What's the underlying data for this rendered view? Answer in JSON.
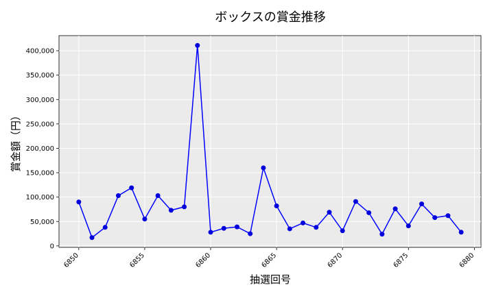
{
  "chart_data": {
    "type": "line",
    "title": "ボックスの賞金推移",
    "xlabel": "抽選回号",
    "ylabel": "賞金額（円）",
    "x_ticks": [
      6850,
      6855,
      6860,
      6865,
      6870,
      6875,
      6880
    ],
    "y_ticks": [
      0,
      50000,
      100000,
      150000,
      200000,
      250000,
      300000,
      350000,
      400000
    ],
    "y_tick_labels": [
      "0",
      "50,000",
      "100,000",
      "150,000",
      "200,000",
      "250,000",
      "300,000",
      "350,000",
      "400,000"
    ],
    "xlim": [
      6848.5,
      6880.5
    ],
    "ylim": [
      -3000,
      431000
    ],
    "grid": true,
    "background": "#ebebeb",
    "line_color": "#0000ff",
    "marker_color": "#0000dd",
    "series": [
      {
        "x": [
          6850,
          6851,
          6852,
          6853,
          6854,
          6855,
          6856,
          6857,
          6858,
          6859,
          6860,
          6861,
          6862,
          6863,
          6864,
          6865,
          6866,
          6867,
          6868,
          6869,
          6870,
          6871,
          6872,
          6873,
          6874,
          6875,
          6876,
          6877,
          6878,
          6879
        ],
        "values": [
          90000,
          17000,
          38000,
          103000,
          119000,
          55000,
          103000,
          73000,
          80000,
          411000,
          28000,
          36000,
          39000,
          25000,
          160000,
          82000,
          35000,
          47000,
          38000,
          69000,
          31000,
          91000,
          68000,
          24000,
          76000,
          41000,
          86000,
          58000,
          62000,
          28000
        ]
      }
    ]
  }
}
